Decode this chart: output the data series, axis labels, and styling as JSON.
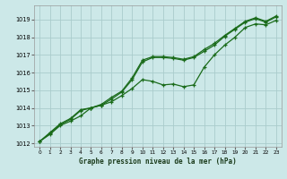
{
  "title": "Graphe pression niveau de la mer (hPa)",
  "bg_color": "#cce8e8",
  "grid_color": "#aacccc",
  "line_color": "#1a6b1a",
  "marker_color": "#1a6b1a",
  "xlim": [
    -0.5,
    23.5
  ],
  "ylim": [
    1011.8,
    1019.8
  ],
  "xticks": [
    0,
    1,
    2,
    3,
    4,
    5,
    6,
    7,
    8,
    9,
    10,
    11,
    12,
    13,
    14,
    15,
    16,
    17,
    18,
    19,
    20,
    21,
    22,
    23
  ],
  "yticks": [
    1012,
    1013,
    1014,
    1015,
    1016,
    1017,
    1018,
    1019
  ],
  "series1": {
    "x": [
      0,
      1,
      2,
      3,
      4,
      5,
      6,
      7,
      8,
      9,
      10,
      11,
      12,
      13,
      14,
      15,
      16,
      17,
      18,
      19,
      20,
      21,
      22,
      23
    ],
    "y": [
      1012.1,
      1012.6,
      1013.1,
      1013.4,
      1013.9,
      1014.0,
      1014.2,
      1014.6,
      1014.95,
      1015.7,
      1016.7,
      1016.9,
      1016.9,
      1016.85,
      1016.75,
      1016.9,
      1017.3,
      1017.65,
      1018.1,
      1018.5,
      1018.9,
      1019.1,
      1018.9,
      1019.2
    ]
  },
  "series2": {
    "x": [
      0,
      1,
      2,
      3,
      4,
      5,
      6,
      7,
      8,
      9,
      10,
      11,
      12,
      13,
      14,
      15,
      16,
      17,
      18,
      19,
      20,
      21,
      22,
      23
    ],
    "y": [
      1012.1,
      1012.55,
      1013.05,
      1013.35,
      1013.85,
      1014.0,
      1014.15,
      1014.5,
      1014.9,
      1015.6,
      1016.6,
      1016.85,
      1016.85,
      1016.8,
      1016.7,
      1016.85,
      1017.2,
      1017.55,
      1018.05,
      1018.45,
      1018.85,
      1019.05,
      1018.85,
      1019.15
    ]
  },
  "series3": {
    "x": [
      0,
      1,
      2,
      3,
      4,
      5,
      6,
      7,
      8,
      9,
      10,
      11,
      12,
      13,
      14,
      15,
      16,
      17,
      18,
      19,
      20,
      21,
      22,
      23
    ],
    "y": [
      1012.1,
      1012.5,
      1013.0,
      1013.25,
      1013.55,
      1014.0,
      1014.15,
      1014.35,
      1014.7,
      1015.1,
      1015.6,
      1015.5,
      1015.3,
      1015.35,
      1015.2,
      1015.3,
      1016.3,
      1017.0,
      1017.55,
      1018.0,
      1018.55,
      1018.75,
      1018.7,
      1018.95
    ]
  }
}
